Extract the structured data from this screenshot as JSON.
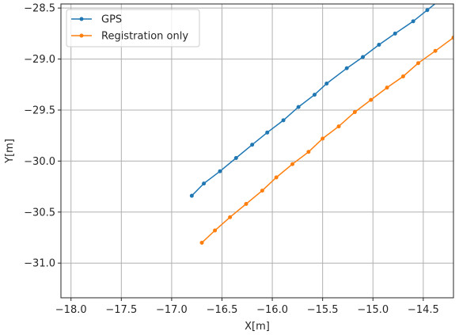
{
  "chart_data": {
    "type": "line",
    "title": "",
    "xlabel": "X[m]",
    "ylabel": "Y[m]",
    "xlim": [
      -18.1,
      -14.2
    ],
    "ylim": [
      -31.34,
      -28.46
    ],
    "xticks": [
      -18.0,
      -17.5,
      -17.0,
      -16.5,
      -16.0,
      -15.5,
      -15.0,
      -14.5
    ],
    "xtick_labels": [
      "−18.0",
      "−17.5",
      "−17.0",
      "−16.5",
      "−16.0",
      "−15.5",
      "−15.0",
      "−14.5"
    ],
    "yticks": [
      -28.5,
      -29.0,
      -29.5,
      -30.0,
      -30.5,
      -31.0
    ],
    "ytick_labels": [
      "−28.5",
      "−29.0",
      "−29.5",
      "−30.0",
      "−30.5",
      "−31.0"
    ],
    "grid": true,
    "legend_position": "top-left",
    "series": [
      {
        "name": "GPS",
        "color": "#1f77b4",
        "x": [
          -16.8,
          -16.68,
          -16.52,
          -16.36,
          -16.2,
          -16.05,
          -15.89,
          -15.74,
          -15.58,
          -15.46,
          -15.26,
          -15.1,
          -14.94,
          -14.78,
          -14.6,
          -14.46,
          -14.36
        ],
        "y": [
          -30.34,
          -30.22,
          -30.1,
          -29.97,
          -29.84,
          -29.72,
          -29.6,
          -29.47,
          -29.35,
          -29.24,
          -29.09,
          -28.98,
          -28.86,
          -28.75,
          -28.63,
          -28.52,
          -28.44
        ]
      },
      {
        "name": "Registration only",
        "color": "#ff7f0e",
        "x": [
          -16.7,
          -16.57,
          -16.42,
          -16.26,
          -16.1,
          -15.96,
          -15.8,
          -15.64,
          -15.5,
          -15.34,
          -15.18,
          -15.02,
          -14.86,
          -14.7,
          -14.55,
          -14.38,
          -14.2
        ],
        "y": [
          -30.8,
          -30.68,
          -30.55,
          -30.42,
          -30.29,
          -30.16,
          -30.03,
          -29.91,
          -29.78,
          -29.66,
          -29.52,
          -29.4,
          -29.28,
          -29.17,
          -29.04,
          -28.92,
          -28.79
        ]
      }
    ]
  }
}
